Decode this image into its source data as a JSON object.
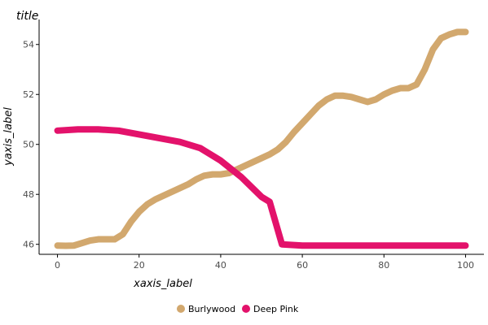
{
  "chart_data": {
    "type": "line",
    "title": "title",
    "xlabel": "xaxis_label",
    "ylabel": "yaxis_label",
    "xlim": [
      -4.5,
      104.5
    ],
    "ylim": [
      45.6,
      55.0
    ],
    "x_ticks": [
      0,
      20,
      40,
      60,
      80,
      100
    ],
    "y_ticks": [
      46,
      48,
      50,
      52,
      54
    ],
    "x_tick_labels": [
      "0",
      "20",
      "40",
      "60",
      "80",
      "100"
    ],
    "y_tick_labels": [
      "46",
      "48",
      "50",
      "52",
      "54"
    ],
    "grid": false,
    "legend_position": "bottom",
    "series": [
      {
        "name": "Burlywood",
        "color": "#d2a86e",
        "x": [
          0,
          2,
          4,
          6,
          8,
          10,
          12,
          14,
          16,
          18,
          20,
          22,
          24,
          26,
          28,
          30,
          32,
          34,
          36,
          38,
          40,
          42,
          44,
          46,
          48,
          50,
          52,
          54,
          56,
          58,
          60,
          62,
          64,
          66,
          68,
          70,
          72,
          74,
          76,
          78,
          80,
          82,
          84,
          86,
          88,
          90,
          92,
          94,
          96,
          98,
          100
        ],
        "y": [
          45.95,
          45.94,
          45.95,
          46.05,
          46.15,
          46.2,
          46.2,
          46.2,
          46.4,
          46.9,
          47.3,
          47.6,
          47.8,
          47.95,
          48.1,
          48.25,
          48.4,
          48.6,
          48.75,
          48.8,
          48.8,
          48.85,
          49.0,
          49.15,
          49.3,
          49.45,
          49.6,
          49.8,
          50.1,
          50.5,
          50.85,
          51.2,
          51.55,
          51.8,
          51.95,
          51.95,
          51.9,
          51.8,
          51.7,
          51.8,
          52.0,
          52.15,
          52.25,
          52.25,
          52.4,
          53.0,
          53.8,
          54.25,
          54.4,
          54.5,
          54.5
        ]
      },
      {
        "name": "Deep Pink",
        "color": "#e3126b",
        "x": [
          0,
          5,
          10,
          15,
          20,
          25,
          30,
          35,
          40,
          45,
          50,
          52,
          55,
          60,
          65,
          70,
          75,
          80,
          85,
          90,
          95,
          100
        ],
        "y": [
          50.55,
          50.6,
          50.6,
          50.55,
          50.4,
          50.25,
          50.1,
          49.85,
          49.35,
          48.7,
          47.9,
          47.7,
          46.0,
          45.95,
          45.95,
          45.95,
          45.95,
          45.95,
          45.95,
          45.95,
          45.95,
          45.95
        ]
      }
    ]
  }
}
